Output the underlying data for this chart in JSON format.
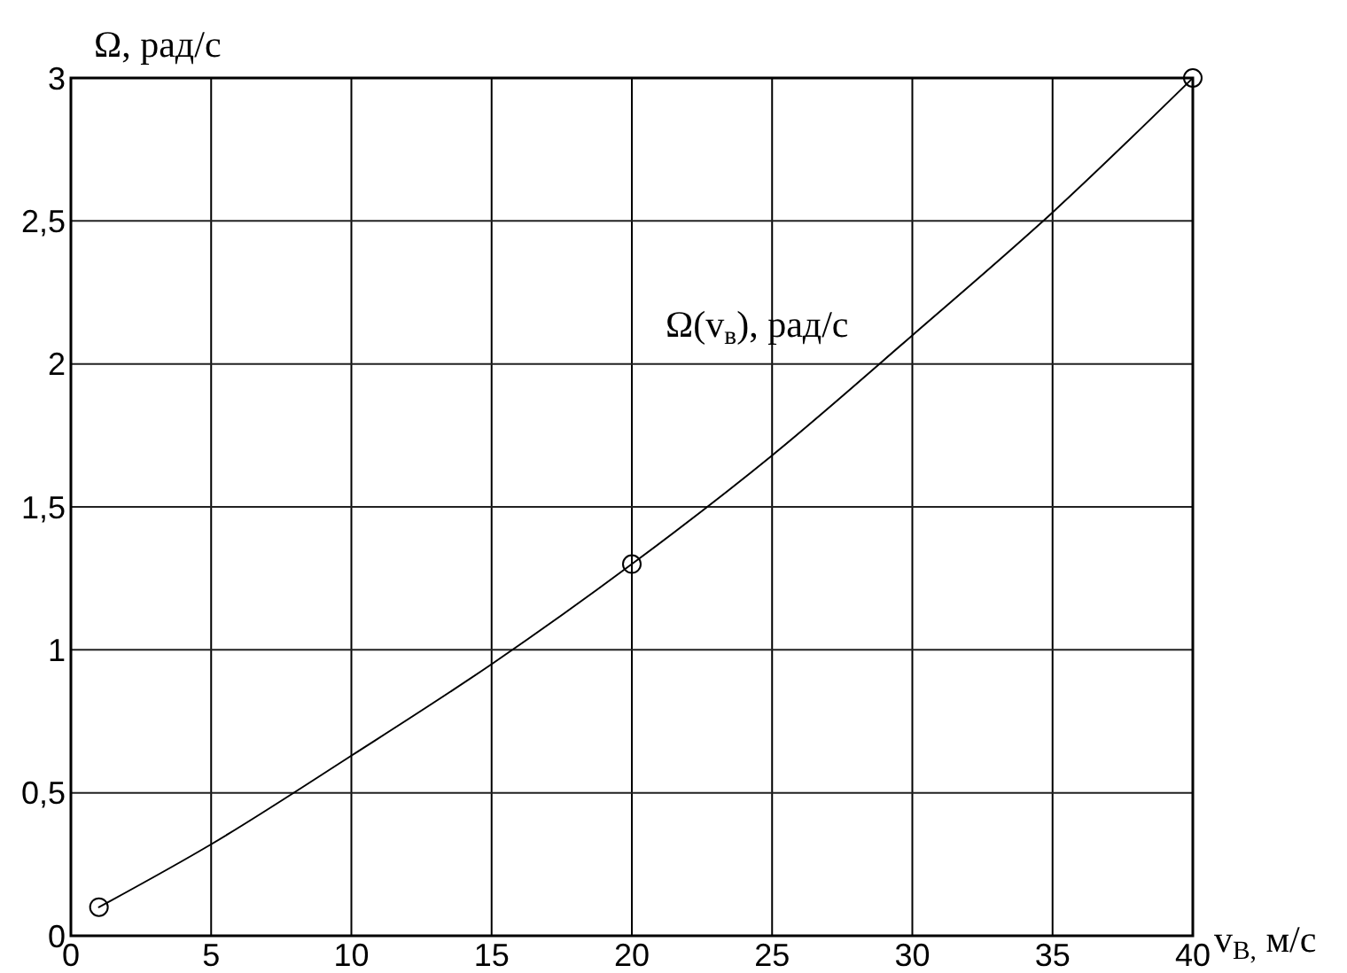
{
  "chart_data": {
    "type": "line",
    "xlabel": "v$_{В,}$ м/с",
    "ylabel": "Ω, рад/с",
    "xlim": [
      0,
      40
    ],
    "xticks": [
      0,
      5,
      10,
      15,
      20,
      25,
      30,
      35,
      40
    ],
    "ylim": [
      0,
      3
    ],
    "yticks": [
      0,
      {
        "value": 0.5,
        "label": "0,5"
      },
      1,
      {
        "value": 1.5,
        "label": "1,5"
      },
      2,
      {
        "value": 2.5,
        "label": "2,5"
      },
      3
    ],
    "grid": true,
    "series": [
      {
        "name": "Ω(v$_{в}$), рад/с",
        "color": "#000000",
        "marker": "none",
        "line_style": "solid",
        "x": [
          1,
          5,
          10,
          15,
          20,
          25,
          30,
          35,
          40
        ],
        "values": [
          0.1,
          0.32,
          0.63,
          0.95,
          1.3,
          1.68,
          2.1,
          2.53,
          3.0
        ]
      },
      {
        "type": "scatter",
        "color": "#000000",
        "marker": "circle",
        "x": [
          1,
          20,
          40
        ],
        "values": [
          0.1,
          1.3,
          3.0
        ]
      }
    ]
  }
}
